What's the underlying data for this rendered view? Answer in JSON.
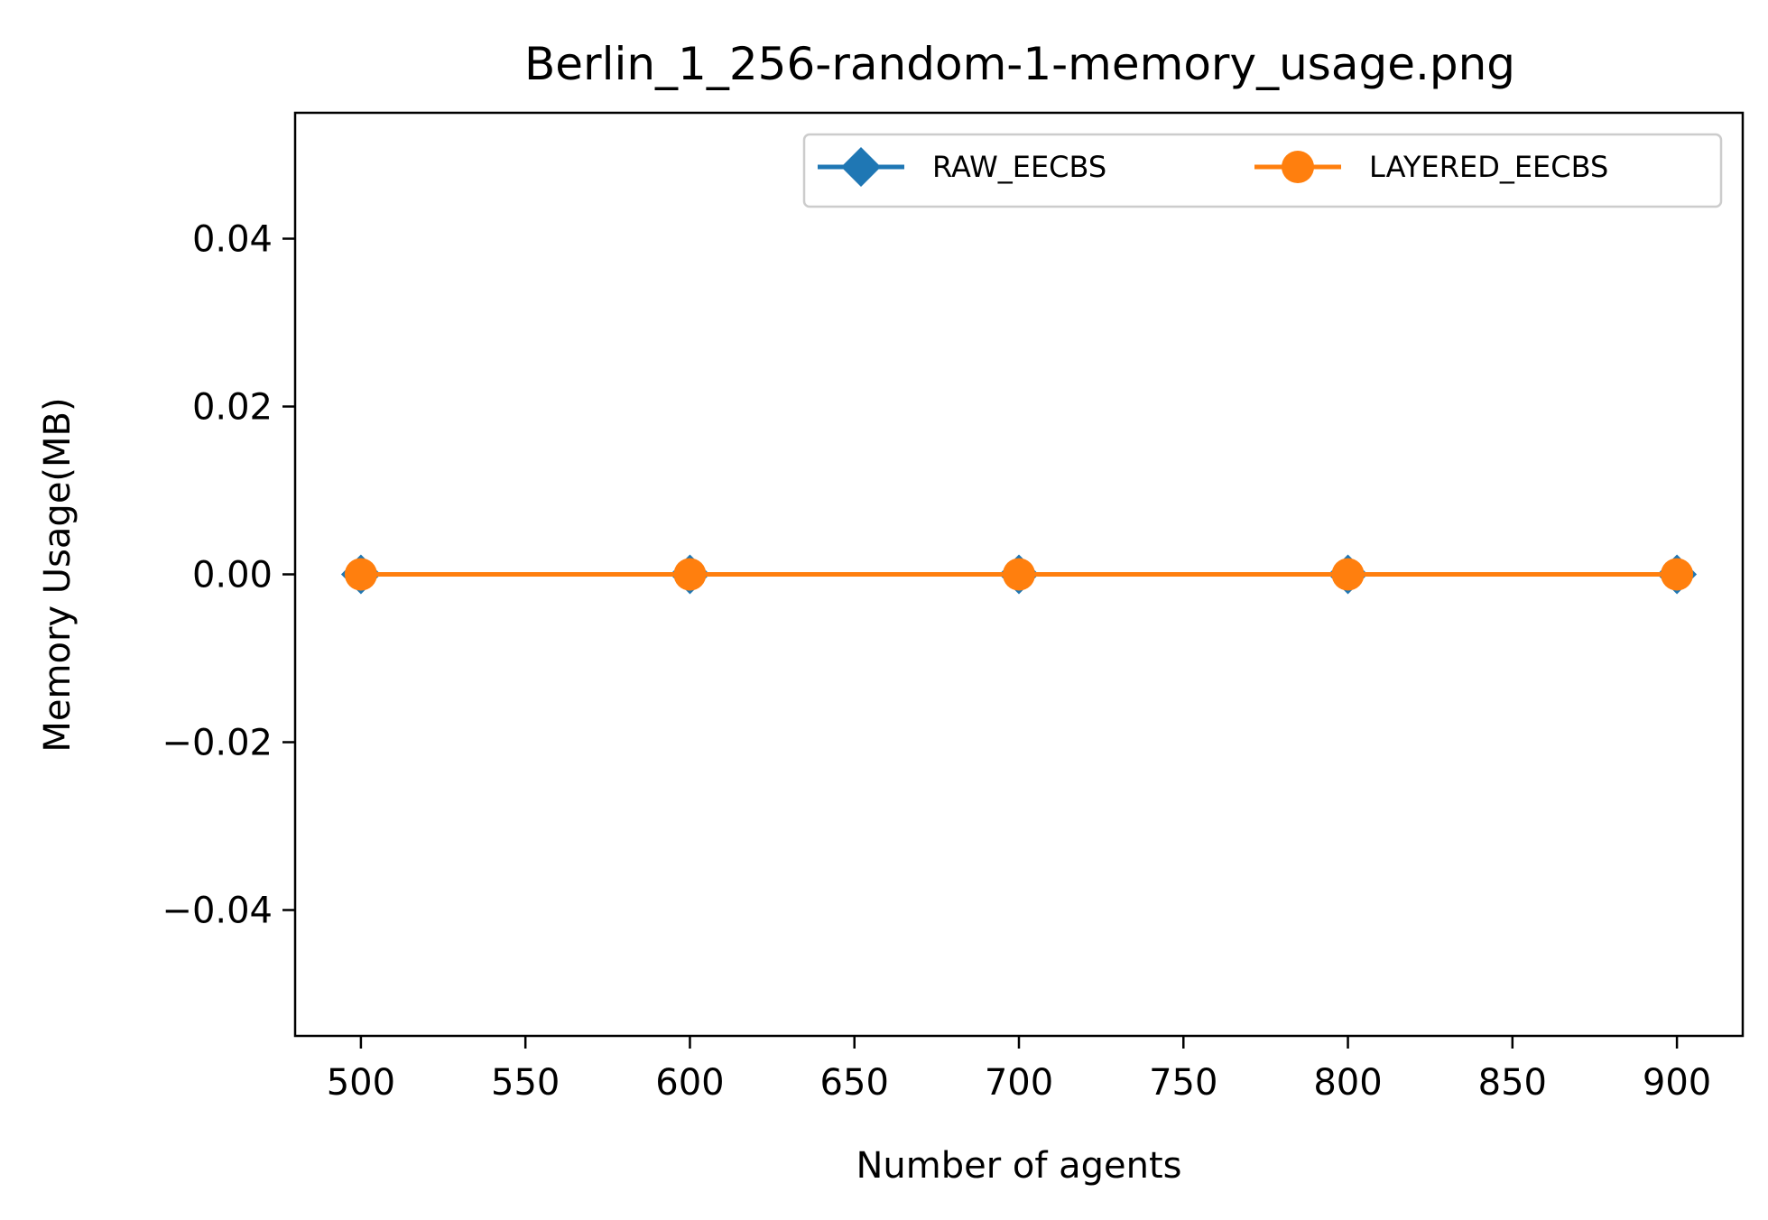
{
  "chart_data": {
    "type": "line",
    "title": "Berlin_1_256-random-1-memory_usage.png",
    "xlabel": "Number of agents",
    "ylabel": "Memory Usage(MB)",
    "x": [
      500,
      600,
      700,
      800,
      900
    ],
    "xlim": [
      480,
      920
    ],
    "ylim": [
      -0.055,
      0.055
    ],
    "xticks": [
      500,
      550,
      600,
      650,
      700,
      750,
      800,
      850,
      900
    ],
    "xtick_labels": [
      "500",
      "550",
      "600",
      "650",
      "700",
      "750",
      "800",
      "850",
      "900"
    ],
    "yticks": [
      -0.04,
      -0.02,
      0.0,
      0.02,
      0.04
    ],
    "ytick_labels": [
      "−0.04",
      "−0.02",
      "0.00",
      "0.02",
      "0.04"
    ],
    "grid": false,
    "legend_position": "top-right",
    "series": [
      {
        "name": "RAW_EECBS",
        "values": [
          0,
          0,
          0,
          0,
          0
        ],
        "color": "#1f77b4",
        "marker": "diamond"
      },
      {
        "name": "LAYERED_EECBS",
        "values": [
          0,
          0,
          0,
          0,
          0
        ],
        "color": "#ff7f0e",
        "marker": "circle"
      }
    ]
  }
}
